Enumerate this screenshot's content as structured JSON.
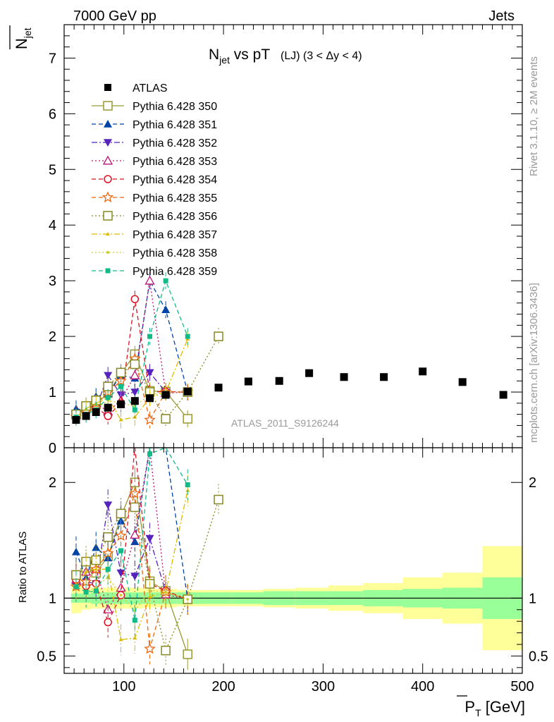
{
  "chart_data": {
    "type": "scatter",
    "header": {
      "left": "7000 GeV pp",
      "right": "Jets"
    },
    "title": {
      "main": "N",
      "sub": "jet",
      "rest": " vs pT",
      "region": "(LJ) (3 < Δy < 4)"
    },
    "ylabel": {
      "main": "N",
      "sub": "jet"
    },
    "ratio_ylabel": "Ratio to ATLAS",
    "xlabel": {
      "main": "P",
      "sub": "T",
      "unit": " [GeV]"
    },
    "analysis_tag": "ATLAS_2011_S9126244",
    "side_text_top": "Rivet 3.1.10, ≥ 2M events",
    "side_text_bottom": "mcplots.cern.ch [arXiv:1306.3436]",
    "xlim": [
      40,
      500
    ],
    "ylim_main": [
      0,
      7.6
    ],
    "ylim_ratio": [
      0.35,
      2.3
    ],
    "x_ticks": [
      100,
      200,
      300,
      400,
      500
    ],
    "y_ticks_main": [
      0,
      1,
      2,
      3,
      4,
      5,
      6,
      7
    ],
    "y_ticks_ratio": [
      0.5,
      1,
      2
    ],
    "reference": {
      "name": "ATLAS",
      "x": [
        52,
        62,
        72,
        84,
        97,
        111,
        126,
        142,
        164,
        195,
        225,
        256,
        286,
        321,
        361,
        400,
        440,
        481
      ],
      "y": [
        0.5,
        0.57,
        0.64,
        0.72,
        0.78,
        0.84,
        0.89,
        0.95,
        1.01,
        1.08,
        1.19,
        1.2,
        1.34,
        1.27,
        1.27,
        1.37,
        1.18,
        0.95
      ],
      "band_edges": [
        47,
        57,
        67,
        78,
        90,
        104,
        119,
        134,
        153,
        175,
        208,
        240,
        272,
        305,
        340,
        380,
        420,
        460,
        500
      ],
      "band_inner": [
        0.04,
        0.04,
        0.05,
        0.05,
        0.05,
        0.05,
        0.05,
        0.05,
        0.05,
        0.05,
        0.05,
        0.06,
        0.06,
        0.06,
        0.07,
        0.08,
        0.09,
        0.18,
        0.55
      ],
      "band_outer": [
        0.13,
        0.1,
        0.09,
        0.09,
        0.09,
        0.09,
        0.08,
        0.08,
        0.07,
        0.07,
        0.07,
        0.08,
        0.09,
        0.11,
        0.13,
        0.18,
        0.22,
        0.45,
        0.65
      ]
    },
    "series": [
      {
        "name": "Pythia 6.428 350",
        "color": "#999933",
        "marker": "square-open",
        "dash": "solid",
        "x": [
          52,
          62,
          72,
          84,
          97,
          111,
          126,
          142,
          164
        ],
        "y": [
          0.6,
          0.72,
          0.78,
          0.98,
          1.33,
          1.68,
          1.02,
          1.01,
          0.52
        ]
      },
      {
        "name": "Pythia 6.428 351",
        "color": "#0044aa",
        "marker": "triangle-up",
        "dash": "dashed",
        "x": [
          52,
          62,
          72,
          84,
          97,
          111,
          126,
          142,
          164
        ],
        "y": [
          0.7,
          0.67,
          0.92,
          0.97,
          1.3,
          1.25,
          3.0,
          2.48,
          1.0
        ]
      },
      {
        "name": "Pythia 6.428 352",
        "color": "#5522bb",
        "marker": "triangle-down",
        "dash": "dashdot",
        "x": [
          52,
          62,
          72,
          84,
          97,
          111,
          126,
          142,
          164
        ],
        "y": [
          0.55,
          0.65,
          0.72,
          1.3,
          0.95,
          1.0,
          1.35,
          1.0,
          1.0
        ]
      },
      {
        "name": "Pythia 6.428 353",
        "color": "#bb1177",
        "marker": "triangle-up-open",
        "dash": "dotted",
        "x": [
          52,
          62,
          72,
          84,
          97,
          111,
          126,
          142,
          164
        ],
        "y": [
          0.58,
          0.7,
          0.8,
          0.65,
          0.85,
          1.3,
          3.0,
          0.98,
          1.0
        ]
      },
      {
        "name": "Pythia 6.428 354",
        "color": "#dd1122",
        "marker": "circle-open",
        "dash": "dashed",
        "x": [
          52,
          62,
          72,
          84,
          97,
          111,
          126,
          142,
          164
        ],
        "y": [
          0.58,
          0.63,
          0.72,
          0.57,
          0.8,
          2.67,
          1.0,
          1.01,
          1.0
        ]
      },
      {
        "name": "Pythia 6.428 355",
        "color": "#ee6611",
        "marker": "star-open",
        "dash": "dashed",
        "x": [
          52,
          62,
          72,
          84,
          97,
          111,
          126,
          142,
          164
        ],
        "y": [
          0.55,
          0.65,
          0.8,
          1.0,
          1.2,
          1.6,
          0.5,
          1.0,
          1.0
        ]
      },
      {
        "name": "Pythia 6.428 356",
        "color": "#888822",
        "marker": "square-open",
        "dash": "dotted",
        "x": [
          52,
          62,
          72,
          84,
          97,
          111,
          126,
          142,
          164,
          195
        ],
        "y": [
          0.6,
          0.75,
          0.85,
          1.1,
          1.35,
          1.5,
          1.0,
          0.52,
          1.0,
          2.0
        ]
      },
      {
        "name": "Pythia 6.428 357",
        "color": "#ddbb00",
        "marker": "tri-small",
        "dash": "dashdot",
        "x": [
          52,
          62,
          72,
          84,
          97,
          111,
          126,
          142,
          164
        ],
        "y": [
          0.55,
          0.7,
          0.8,
          0.9,
          0.5,
          0.55,
          0.9,
          1.0,
          1.95
        ]
      },
      {
        "name": "Pythia 6.428 358",
        "color": "#cccc33",
        "marker": "dot",
        "dash": "dotted",
        "x": [
          52,
          62,
          72,
          84,
          97,
          111,
          126,
          142,
          164
        ],
        "y": [
          0.55,
          0.6,
          0.7,
          0.85,
          0.8,
          0.75,
          0.95,
          1.0,
          1.0
        ]
      },
      {
        "name": "Pythia 6.428 359",
        "color": "#11bb88",
        "marker": "square-small",
        "dash": "dashed",
        "x": [
          52,
          62,
          72,
          84,
          97,
          111,
          126,
          142,
          164
        ],
        "y": [
          0.55,
          0.6,
          0.68,
          0.9,
          1.1,
          0.68,
          2.0,
          3.0,
          2.0
        ]
      }
    ]
  }
}
